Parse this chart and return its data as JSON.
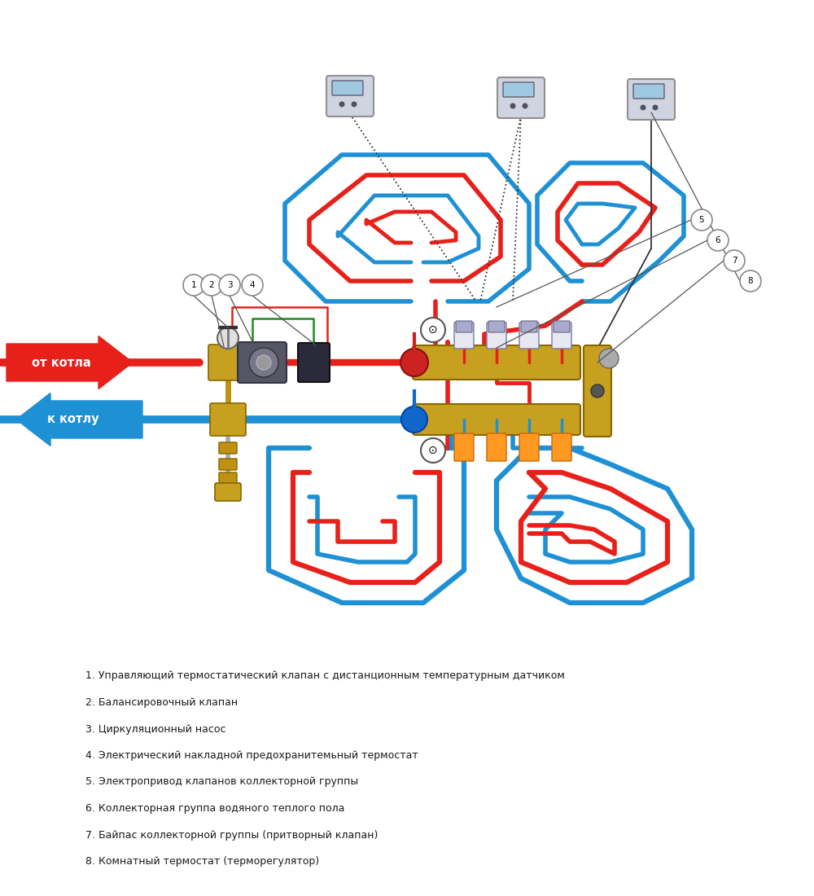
{
  "background_color": "#ffffff",
  "red_color": "#e8201a",
  "blue_color": "#1e90d4",
  "gold_color": "#c8a020",
  "green_color": "#228822",
  "gray_color": "#aaaaaa",
  "dark_color": "#333333",
  "legend_items": [
    "1. Управляющий термостатический клапан с дистанционным температурным датчиком",
    "2. Балансировочный клапан",
    "3. Циркуляционный насос",
    "4. Электрический накладной предохранитемьный термостат",
    "5. Электропривод клапанов коллекторной группы",
    "6. Коллекторная группа водяного теплого пола",
    "7. Байпас коллекторной группы (притворный клапан)",
    "8. Комнатный термостат (терморегулятор)"
  ],
  "label_ot_kotla": "от котла",
  "label_k_kotlu": "к котлу"
}
